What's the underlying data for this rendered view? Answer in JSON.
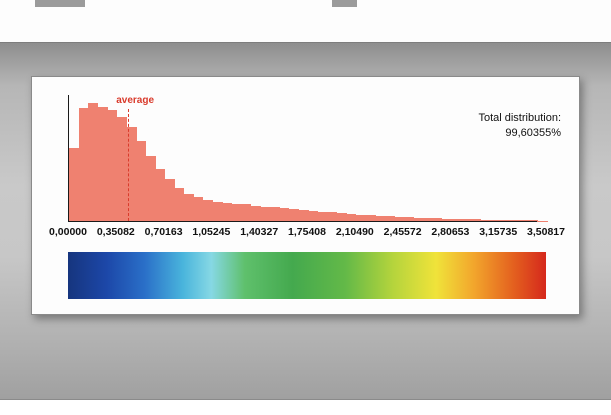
{
  "chart": {
    "average_label": "average",
    "total_label": "Total distribution:",
    "total_value": "99,60355%"
  },
  "chart_data": {
    "type": "bar",
    "subtype": "histogram",
    "title": "",
    "xlabel": "",
    "ylabel": "",
    "grid": false,
    "y_axis_tick_labels": "none",
    "x_min": 0,
    "x_max": 3.50817,
    "x_tick_labels": [
      "0,00000",
      "0,35082",
      "0,70163",
      "1,05245",
      "1,40327",
      "1,75408",
      "2,10490",
      "2,45572",
      "2,80653",
      "3,15735",
      "3,50817"
    ],
    "bin_count": 50,
    "values_percent_of_max": [
      62,
      96,
      100,
      97,
      94,
      88,
      80,
      68,
      55,
      44,
      36,
      28,
      23,
      20,
      18,
      16.5,
      15.5,
      14.5,
      14,
      13,
      12,
      11.5,
      11,
      10,
      9,
      8.5,
      8,
      7.5,
      7,
      6,
      5.5,
      5,
      4.5,
      4,
      3.5,
      3,
      2.8,
      2.5,
      2.2,
      2,
      1.7,
      1.5,
      1.3,
      1.1,
      1,
      0.8,
      0.7,
      0.6,
      0.5,
      0.4
    ],
    "average_x": 0.43,
    "annotations": {
      "average_line": "dashed vertical line labeled 'average'",
      "total_distribution": "Total distribution: 99,60355%"
    },
    "bar_color": "#ef8170",
    "average_line_color": "#d93a2b",
    "colorbar_stops": [
      {
        "pos": 0,
        "color": "#16357e"
      },
      {
        "pos": 8,
        "color": "#1c47a8"
      },
      {
        "pos": 16,
        "color": "#2a6fc8"
      },
      {
        "pos": 24,
        "color": "#49b4dc"
      },
      {
        "pos": 30,
        "color": "#86d8e4"
      },
      {
        "pos": 37,
        "color": "#5fc06c"
      },
      {
        "pos": 47,
        "color": "#44a94e"
      },
      {
        "pos": 58,
        "color": "#63b948"
      },
      {
        "pos": 68,
        "color": "#b5d43c"
      },
      {
        "pos": 77,
        "color": "#f0e33a"
      },
      {
        "pos": 85,
        "color": "#f2a52c"
      },
      {
        "pos": 93,
        "color": "#e4621f"
      },
      {
        "pos": 100,
        "color": "#d5281c"
      }
    ]
  }
}
